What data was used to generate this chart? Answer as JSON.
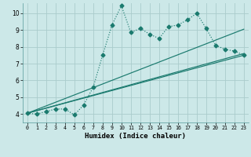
{
  "title": "",
  "xlabel": "Humidex (Indice chaleur)",
  "bg_color": "#cce8e8",
  "grid_color": "#aacccc",
  "line_color": "#1a7a6e",
  "xlim": [
    -0.5,
    23.5
  ],
  "ylim": [
    3.5,
    10.6
  ],
  "xticks": [
    0,
    1,
    2,
    3,
    4,
    5,
    6,
    7,
    8,
    9,
    10,
    11,
    12,
    13,
    14,
    15,
    16,
    17,
    18,
    19,
    20,
    21,
    22,
    23
  ],
  "yticks": [
    4,
    5,
    6,
    7,
    8,
    9,
    10
  ],
  "series1_x": [
    0,
    1,
    2,
    3,
    4,
    5,
    6,
    7,
    8,
    9,
    10,
    11,
    12,
    13,
    14,
    15,
    16,
    17,
    18,
    19,
    20,
    21,
    22,
    23
  ],
  "series1_y": [
    4.05,
    4.0,
    4.15,
    4.3,
    4.3,
    3.95,
    4.55,
    5.6,
    7.5,
    9.3,
    10.45,
    8.85,
    9.1,
    8.75,
    8.5,
    9.2,
    9.3,
    9.6,
    10.0,
    9.1,
    8.1,
    7.85,
    7.75,
    7.5
  ],
  "line2_x": [
    0,
    23
  ],
  "line2_y": [
    4.05,
    7.5
  ],
  "line3_x": [
    0,
    23
  ],
  "line3_y": [
    4.05,
    7.6
  ],
  "line4_x": [
    0,
    23
  ],
  "line4_y": [
    4.05,
    9.05
  ]
}
